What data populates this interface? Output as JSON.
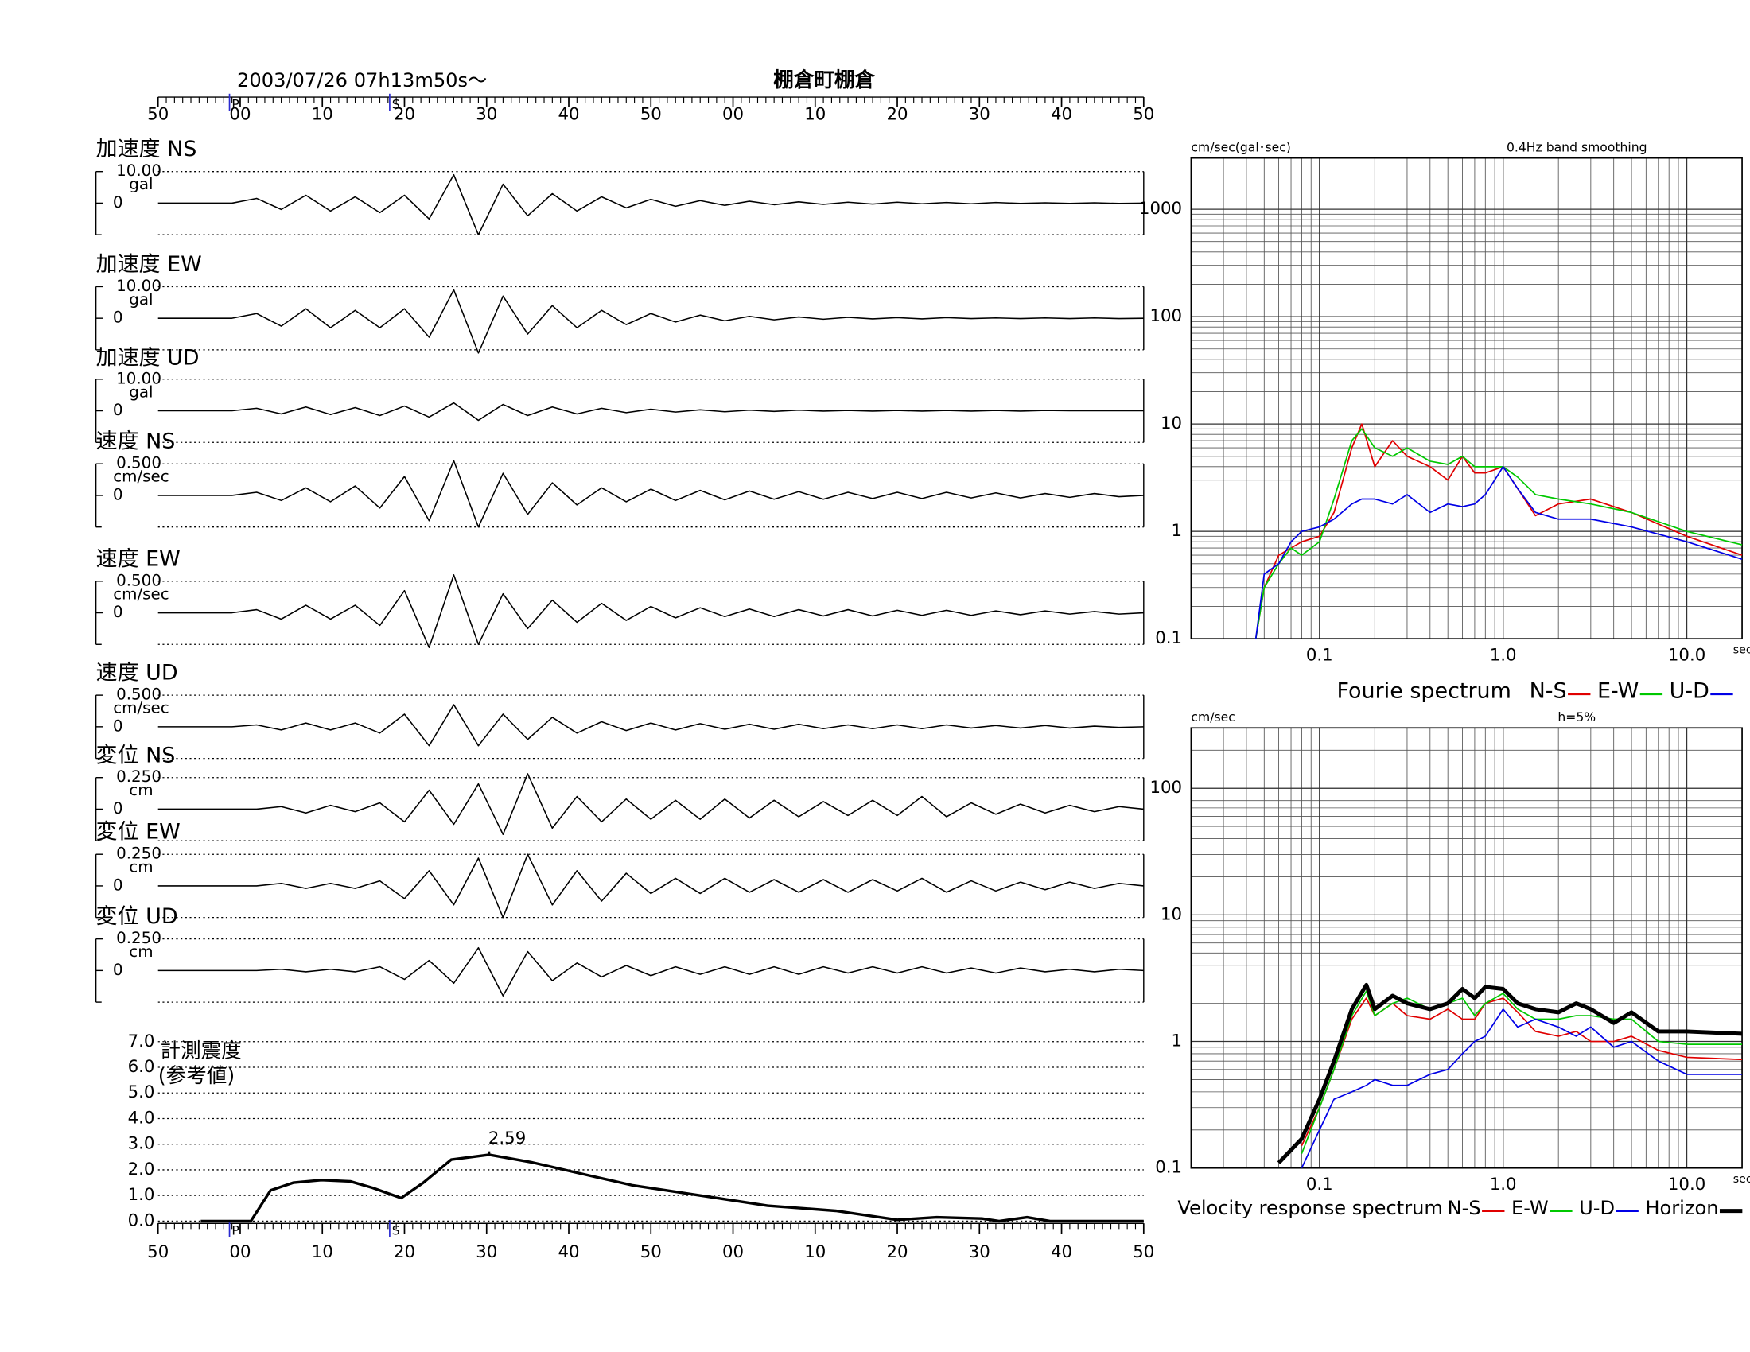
{
  "chart_data": [
    {
      "type": "waveform",
      "title": "2003/07/26  07h13m50s〜",
      "subtitle": "棚倉町棚倉",
      "xlim": [
        0,
        120
      ],
      "xticks": [
        {
          "value": 0,
          "label": "50"
        },
        {
          "value": 10,
          "label": "00"
        },
        {
          "value": 20,
          "label": "10"
        },
        {
          "value": 30,
          "label": "20"
        },
        {
          "value": 40,
          "label": "30"
        },
        {
          "value": 50,
          "label": "40"
        },
        {
          "value": 60,
          "label": "50"
        },
        {
          "value": 70,
          "label": "00"
        },
        {
          "value": 80,
          "label": "10"
        },
        {
          "value": 90,
          "label": "20"
        },
        {
          "value": 100,
          "label": "30"
        },
        {
          "value": 110,
          "label": "40"
        },
        {
          "value": 120,
          "label": "50"
        }
      ],
      "markers": [
        {
          "label": "P",
          "x": 8.7
        },
        {
          "label": "S",
          "x": 28.2
        }
      ],
      "x": [
        0,
        3,
        6,
        9,
        12,
        15,
        18,
        21,
        24,
        27,
        30,
        33,
        36,
        39,
        42,
        45,
        48,
        51,
        54,
        57,
        60,
        63,
        66,
        69,
        72,
        75,
        78,
        81,
        84,
        87,
        90,
        93,
        96,
        99,
        102,
        105,
        108,
        111,
        114,
        117,
        120
      ],
      "series": [
        {
          "name": "加速度 NS",
          "unit": "gal",
          "color": "#000000",
          "ylim": [
            -10,
            10
          ],
          "yticks": [
            0,
            {
              "value": 10,
              "label": "10.00"
            }
          ],
          "values": [
            0,
            0,
            0,
            0,
            1.5,
            -2,
            2.5,
            -2.5,
            2,
            -3,
            2.5,
            -5,
            9,
            -10,
            6,
            -4,
            3,
            -2.5,
            2,
            -1.5,
            1.2,
            -1,
            0.8,
            -0.7,
            0.6,
            -0.5,
            0.4,
            -0.4,
            0.3,
            -0.3,
            0.3,
            -0.2,
            0.2,
            -0.2,
            0.2,
            -0.1,
            0.1,
            -0.1,
            0.1,
            -0.1,
            0
          ]
        },
        {
          "name": "加速度 EW",
          "unit": "gal",
          "color": "#000000",
          "ylim": [
            -10,
            10
          ],
          "yticks": [
            0,
            {
              "value": 10,
              "label": "10.00"
            }
          ],
          "values": [
            0,
            0,
            0,
            0,
            1.5,
            -2.5,
            3,
            -3,
            2.5,
            -3,
            3,
            -6,
            9,
            -11,
            7,
            -5,
            4,
            -3,
            2.5,
            -2,
            1.5,
            -1.2,
            1,
            -0.8,
            0.6,
            -0.5,
            0.4,
            -0.3,
            0.3,
            -0.2,
            0.2,
            -0.2,
            0.2,
            -0.1,
            0.1,
            -0.1,
            0.1,
            -0.1,
            0.1,
            -0.1,
            0
          ]
        },
        {
          "name": "加速度 UD",
          "unit": "gal",
          "color": "#000000",
          "ylim": [
            -10,
            10
          ],
          "yticks": [
            0,
            {
              "value": 10,
              "label": "10.00"
            }
          ],
          "values": [
            0,
            0,
            0,
            0,
            0.8,
            -1,
            1.2,
            -1.2,
            1,
            -1.5,
            1.5,
            -2,
            2.5,
            -3,
            2,
            -1.5,
            1.2,
            -1,
            0.8,
            -0.6,
            0.5,
            -0.4,
            0.3,
            -0.3,
            0.2,
            -0.2,
            0.2,
            -0.1,
            0.1,
            -0.1,
            0.1,
            -0.1,
            0.1,
            -0.1,
            0.1,
            -0.1,
            0.1,
            0,
            0,
            0,
            0
          ]
        },
        {
          "name": "速度 NS",
          "unit": "cm/sec",
          "color": "#000000",
          "ylim": [
            -0.5,
            0.5
          ],
          "yticks": [
            0,
            {
              "value": 0.5,
              "label": "0.500"
            }
          ],
          "values": [
            0,
            0,
            0,
            0,
            0.05,
            -0.08,
            0.12,
            -0.1,
            0.15,
            -0.2,
            0.3,
            -0.4,
            0.55,
            -0.5,
            0.35,
            -0.3,
            0.2,
            -0.15,
            0.12,
            -0.1,
            0.1,
            -0.08,
            0.08,
            -0.07,
            0.07,
            -0.06,
            0.06,
            -0.06,
            0.05,
            -0.05,
            0.05,
            -0.05,
            0.05,
            -0.04,
            0.04,
            -0.04,
            0.03,
            -0.03,
            0.03,
            -0.02,
            0
          ]
        },
        {
          "name": "速度 EW",
          "unit": "cm/sec",
          "color": "#000000",
          "ylim": [
            -0.5,
            0.5
          ],
          "yticks": [
            0,
            {
              "value": 0.5,
              "label": "0.500"
            }
          ],
          "values": [
            0,
            0,
            0,
            0,
            0.05,
            -0.1,
            0.12,
            -0.1,
            0.12,
            -0.2,
            0.35,
            -0.55,
            0.6,
            -0.5,
            0.3,
            -0.25,
            0.2,
            -0.15,
            0.15,
            -0.12,
            0.1,
            -0.08,
            0.08,
            -0.06,
            0.06,
            -0.06,
            0.05,
            -0.05,
            0.05,
            -0.05,
            0.04,
            -0.04,
            0.04,
            -0.04,
            0.03,
            -0.03,
            0.03,
            -0.02,
            0.02,
            -0.02,
            0
          ]
        },
        {
          "name": "速度 UD",
          "unit": "cm/sec",
          "color": "#000000",
          "ylim": [
            -0.5,
            0.5
          ],
          "yticks": [
            0,
            {
              "value": 0.5,
              "label": "0.500"
            }
          ],
          "values": [
            0,
            0,
            0,
            0,
            0.03,
            -0.05,
            0.06,
            -0.05,
            0.06,
            -0.1,
            0.2,
            -0.3,
            0.35,
            -0.3,
            0.2,
            -0.2,
            0.15,
            -0.1,
            0.08,
            -0.06,
            0.06,
            -0.05,
            0.05,
            -0.04,
            0.04,
            -0.04,
            0.04,
            -0.03,
            0.03,
            -0.03,
            0.03,
            -0.03,
            0.03,
            -0.02,
            0.02,
            -0.02,
            0.02,
            -0.02,
            0.01,
            -0.01,
            0
          ]
        },
        {
          "name": "変位 NS",
          "unit": "cm",
          "color": "#000000",
          "ylim": [
            -0.25,
            0.25
          ],
          "yticks": [
            0,
            {
              "value": 0.25,
              "label": "0.250"
            }
          ],
          "values": [
            0,
            0,
            0,
            0,
            0,
            0.02,
            -0.03,
            0.03,
            -0.02,
            0.05,
            -0.1,
            0.15,
            -0.12,
            0.2,
            -0.2,
            0.28,
            -0.15,
            0.1,
            -0.1,
            0.08,
            -0.08,
            0.07,
            -0.08,
            0.08,
            -0.07,
            0.07,
            -0.06,
            0.06,
            -0.05,
            0.07,
            -0.05,
            0.1,
            -0.06,
            0.05,
            -0.04,
            0.04,
            -0.03,
            0.03,
            -0.02,
            0.02,
            0
          ]
        },
        {
          "name": "変位 EW",
          "unit": "cm",
          "color": "#000000",
          "ylim": [
            -0.25,
            0.25
          ],
          "yticks": [
            0,
            {
              "value": 0.25,
              "label": "0.250"
            }
          ],
          "values": [
            0,
            0,
            0,
            0,
            0,
            0.02,
            -0.02,
            0.02,
            -0.02,
            0.04,
            -0.1,
            0.12,
            -0.15,
            0.22,
            -0.25,
            0.25,
            -0.15,
            0.12,
            -0.12,
            0.1,
            -0.06,
            0.06,
            -0.06,
            0.06,
            -0.05,
            0.05,
            -0.05,
            0.05,
            -0.05,
            0.05,
            -0.04,
            0.06,
            -0.05,
            0.04,
            -0.04,
            0.03,
            -0.03,
            0.03,
            -0.02,
            0.02,
            0
          ]
        },
        {
          "name": "変位 UD",
          "unit": "cm",
          "color": "#000000",
          "ylim": [
            -0.25,
            0.25
          ],
          "yticks": [
            0,
            {
              "value": 0.25,
              "label": "0.250"
            }
          ],
          "values": [
            0,
            0,
            0,
            0,
            0,
            0.01,
            -0.01,
            0.01,
            -0.01,
            0.03,
            -0.07,
            0.08,
            -0.1,
            0.18,
            -0.2,
            0.15,
            -0.08,
            0.06,
            -0.05,
            0.04,
            -0.04,
            0.03,
            -0.03,
            0.03,
            -0.03,
            0.03,
            -0.03,
            0.03,
            -0.02,
            0.03,
            -0.02,
            0.03,
            -0.02,
            0.02,
            -0.02,
            0.02,
            -0.01,
            0.01,
            -0.01,
            0.01,
            0
          ]
        }
      ]
    },
    {
      "type": "line",
      "ylabel": "計測震度",
      "ylabel2": "(参考値)",
      "color": "#000000",
      "xlim": [
        0,
        120
      ],
      "xticks": [
        {
          "value": 0,
          "label": "50"
        },
        {
          "value": 10,
          "label": "00"
        },
        {
          "value": 20,
          "label": "10"
        },
        {
          "value": 30,
          "label": "20"
        },
        {
          "value": 40,
          "label": "30"
        },
        {
          "value": 50,
          "label": "40"
        },
        {
          "value": 60,
          "label": "50"
        },
        {
          "value": 70,
          "label": "00"
        },
        {
          "value": 80,
          "label": "10"
        },
        {
          "value": 90,
          "label": "20"
        },
        {
          "value": 100,
          "label": "30"
        },
        {
          "value": 110,
          "label": "40"
        },
        {
          "value": 120,
          "label": "50"
        }
      ],
      "markers": [
        {
          "label": "P",
          "x": 8.7
        },
        {
          "label": "S",
          "x": 28.2
        }
      ],
      "ylim": [
        0,
        7
      ],
      "yticks": [
        {
          "value": 0,
          "label": "0.0"
        },
        {
          "value": 1,
          "label": "1.0"
        },
        {
          "value": 2,
          "label": "2.0"
        },
        {
          "value": 3,
          "label": "3.0"
        },
        {
          "value": 4,
          "label": "4.0"
        },
        {
          "value": 5,
          "label": "5.0"
        },
        {
          "value": 6,
          "label": "6.0"
        },
        {
          "value": 7,
          "label": "7.0"
        }
      ],
      "grid": true,
      "x": [
        5.2,
        11.3,
        12.1,
        13.7,
        16.5,
        19.9,
        23.4,
        26.1,
        29.6,
        32.3,
        35.7,
        40.3,
        45.4,
        52.2,
        57.7,
        66,
        74.2,
        82.5,
        90,
        94.8,
        100.3,
        102.4,
        105.8,
        108.6,
        120
      ],
      "values": [
        0,
        0,
        0.4,
        1.2,
        1.5,
        1.6,
        1.55,
        1.3,
        0.9,
        1.5,
        2.4,
        2.59,
        2.3,
        1.8,
        1.4,
        1.0,
        0.6,
        0.4,
        0.05,
        0.15,
        0.1,
        0,
        0.15,
        0,
        0
      ]
    },
    {
      "type": "loglog",
      "title": "Fourie spectrum",
      "ylabel": "cm/sec(gal･sec)",
      "xlabel": "sec",
      "note": "0.4Hz band smoothing",
      "xlim": [
        0.02,
        20
      ],
      "ylim": [
        0.1,
        3000
      ],
      "xticks": [
        0.1,
        {
          "value": 1,
          "label": "1.0"
        },
        {
          "value": 10,
          "label": "10.0"
        }
      ],
      "yticks": [
        0.1,
        1,
        10,
        100,
        1000
      ],
      "grid": true,
      "minor_grid": true,
      "x": [
        0.045,
        0.05,
        0.06,
        0.07,
        0.08,
        0.1,
        0.12,
        0.15,
        0.17,
        0.2,
        0.25,
        0.3,
        0.4,
        0.5,
        0.6,
        0.7,
        0.8,
        1.0,
        1.2,
        1.5,
        2,
        3,
        5,
        10,
        20
      ],
      "series": [
        {
          "name": "N-S",
          "color": "#e00000",
          "values": [
            0.1,
            0.3,
            0.6,
            0.7,
            0.8,
            0.9,
            1.5,
            6,
            10,
            4,
            7,
            5,
            4,
            3,
            5,
            3.5,
            3.5,
            4,
            2.5,
            1.4,
            1.8,
            2.0,
            1.5,
            0.9,
            0.6
          ]
        },
        {
          "name": "E-W",
          "color": "#00c800",
          "values": [
            0.1,
            0.3,
            0.5,
            0.7,
            0.6,
            0.8,
            2,
            7,
            9,
            6,
            5,
            6,
            4.5,
            4.2,
            5,
            4,
            4,
            4,
            3.2,
            2.2,
            2,
            1.8,
            1.5,
            1.0,
            0.75
          ]
        },
        {
          "name": "U-D",
          "color": "#0000e6",
          "values": [
            0.1,
            0.4,
            0.5,
            0.8,
            1.0,
            1.1,
            1.3,
            1.8,
            2,
            2,
            1.8,
            2.2,
            1.5,
            1.8,
            1.7,
            1.8,
            2.2,
            4,
            2.5,
            1.5,
            1.3,
            1.3,
            1.1,
            0.8,
            0.55
          ]
        }
      ]
    },
    {
      "type": "loglog",
      "title": "Velocity response spectrum",
      "ylabel": "cm/sec",
      "xlabel": "sec",
      "note": "h=5%",
      "xlim": [
        0.02,
        20
      ],
      "ylim": [
        0.1,
        300
      ],
      "xticks": [
        0.1,
        {
          "value": 1,
          "label": "1.0"
        },
        {
          "value": 10,
          "label": "10.0"
        }
      ],
      "yticks": [
        0.1,
        1,
        10,
        100
      ],
      "grid": true,
      "minor_grid": true,
      "x": [
        0.06,
        0.08,
        0.1,
        0.12,
        0.15,
        0.18,
        0.2,
        0.25,
        0.3,
        0.4,
        0.5,
        0.6,
        0.7,
        0.8,
        1.0,
        1.2,
        1.5,
        2,
        2.5,
        3,
        4,
        5,
        7,
        10,
        20
      ],
      "series": [
        {
          "name": "N-S",
          "color": "#e00000",
          "width": 1.2,
          "values": [
            null,
            0.15,
            0.3,
            0.6,
            1.5,
            2.2,
            1.6,
            2.0,
            1.6,
            1.5,
            1.8,
            1.5,
            1.5,
            2.0,
            2.2,
            1.7,
            1.2,
            1.1,
            1.2,
            1.0,
            1.0,
            1.1,
            0.85,
            0.75,
            0.72
          ]
        },
        {
          "name": "E-W",
          "color": "#00c800",
          "width": 1.2,
          "values": [
            null,
            0.13,
            0.3,
            0.6,
            1.6,
            2.5,
            1.6,
            2.0,
            2.2,
            1.8,
            2.0,
            2.2,
            1.6,
            2.0,
            2.4,
            1.8,
            1.5,
            1.5,
            1.6,
            1.6,
            1.5,
            1.5,
            1.0,
            0.95,
            0.95
          ]
        },
        {
          "name": "U-D",
          "color": "#0000e6",
          "width": 1.2,
          "values": [
            null,
            0.1,
            0.2,
            0.35,
            0.4,
            0.45,
            0.5,
            0.45,
            0.45,
            0.55,
            0.6,
            0.8,
            1.0,
            1.1,
            1.8,
            1.3,
            1.5,
            1.3,
            1.1,
            1.3,
            0.9,
            1.0,
            0.7,
            0.55,
            0.55
          ]
        },
        {
          "name": "Horizon",
          "color": "#000000",
          "width": 3.5,
          "values": [
            0.11,
            0.17,
            0.35,
            0.7,
            1.8,
            2.8,
            1.8,
            2.3,
            2.0,
            1.8,
            2.0,
            2.6,
            2.2,
            2.7,
            2.6,
            2.0,
            1.8,
            1.7,
            2.0,
            1.8,
            1.4,
            1.7,
            1.2,
            1.2,
            1.15
          ]
        }
      ]
    }
  ]
}
